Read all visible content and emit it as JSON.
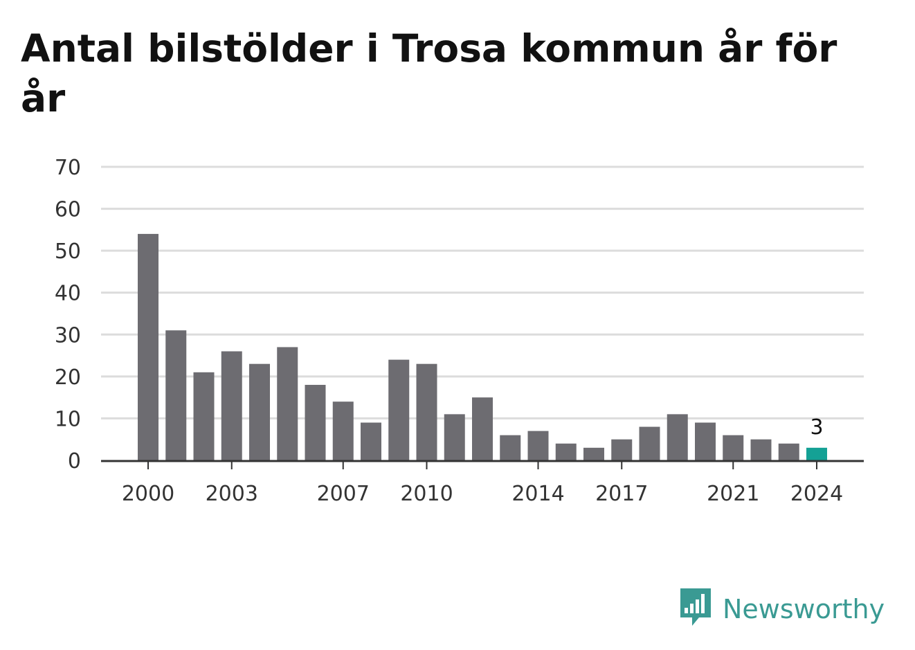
{
  "title": "Antal bilstölder i Trosa kommun år för år",
  "colors": {
    "bar": "#6d6c71",
    "highlight": "#14a195",
    "grid": "#dcdcdc",
    "axis": "#333333",
    "brand": "#3a9a93"
  },
  "brand": {
    "name": "Newsworthy",
    "icon": "newsworthy-logo-icon"
  },
  "chart_data": {
    "type": "bar",
    "title": "Antal bilstölder i Trosa kommun år för år",
    "xlabel": "",
    "ylabel": "",
    "categories": [
      2000,
      2001,
      2002,
      2003,
      2004,
      2005,
      2006,
      2007,
      2008,
      2009,
      2010,
      2011,
      2012,
      2013,
      2014,
      2015,
      2016,
      2017,
      2018,
      2019,
      2020,
      2021,
      2022,
      2023,
      2024
    ],
    "values": [
      54,
      31,
      21,
      26,
      23,
      27,
      18,
      14,
      9,
      24,
      23,
      11,
      15,
      6,
      7,
      4,
      3,
      5,
      8,
      11,
      9,
      6,
      5,
      4,
      3
    ],
    "x_tick_labels": [
      "2000",
      "2003",
      "2007",
      "2010",
      "2014",
      "2017",
      "2021",
      "2024"
    ],
    "y_ticks": [
      0,
      10,
      20,
      30,
      40,
      50,
      60,
      70
    ],
    "ylim": [
      0,
      70
    ],
    "grid": true,
    "highlight_category": 2024,
    "data_labels": [
      {
        "category": 2024,
        "text": "3"
      }
    ]
  }
}
